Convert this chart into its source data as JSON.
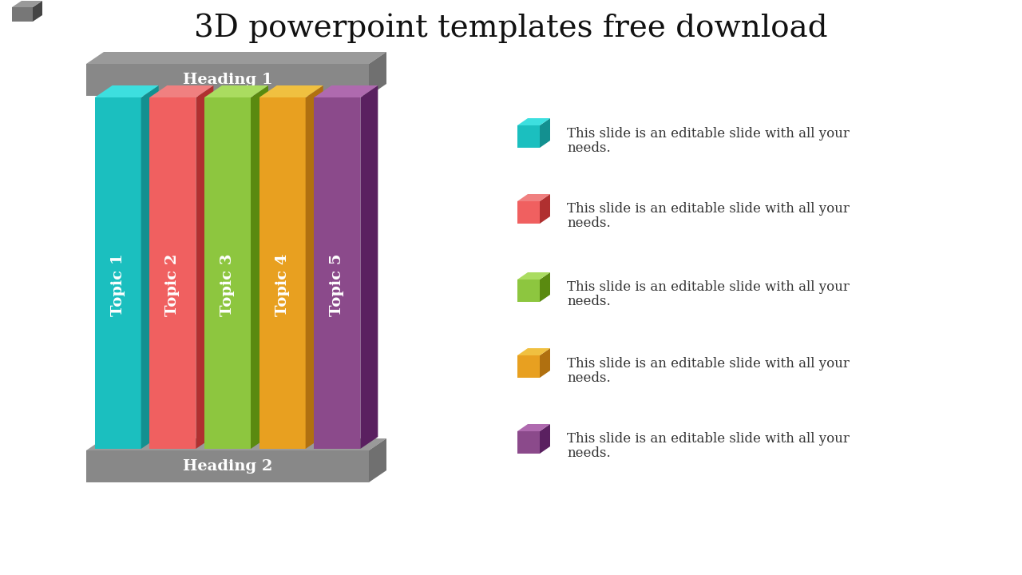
{
  "title": "3D powerpoint templates free download",
  "title_fontsize": 28,
  "background_color": "#ffffff",
  "topics": [
    "Topic 1",
    "Topic 2",
    "Topic 3",
    "Topic 4",
    "Topic 5"
  ],
  "colors_front": [
    "#1BBFBF",
    "#F06060",
    "#8DC63F",
    "#E8A020",
    "#8B4A8B"
  ],
  "colors_side": [
    "#139090",
    "#B03030",
    "#5A8A10",
    "#B07010",
    "#5A2060"
  ],
  "colors_top": [
    "#3DDFDF",
    "#F08080",
    "#AADC60",
    "#F0C040",
    "#AF6AAF"
  ],
  "heading_text_color": "#ffffff",
  "heading1": "Heading 1",
  "heading2": "Heading 2",
  "legend_colors": [
    "#1BBFBF",
    "#F06060",
    "#8DC63F",
    "#E8A020",
    "#8B4A8B"
  ],
  "legend_cube_side": [
    "#139090",
    "#B03030",
    "#5A8A10",
    "#B07010",
    "#5A2060"
  ],
  "legend_cube_top": [
    "#3DDFDF",
    "#F08080",
    "#AADC60",
    "#F0C040",
    "#AF6AAF"
  ]
}
